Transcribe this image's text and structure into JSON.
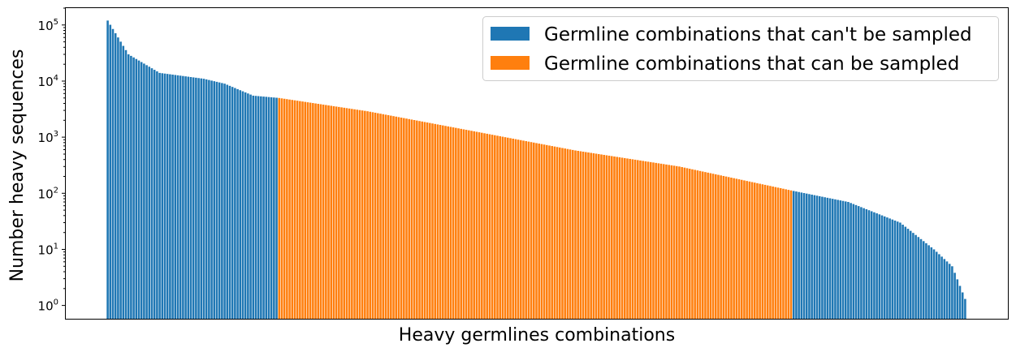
{
  "chart_data": {
    "type": "bar",
    "xlabel": "Heavy germlines combinations",
    "ylabel": "Number heavy sequences",
    "yscale": "log",
    "ylim": [
      0.58,
      200000
    ],
    "yticks": [
      {
        "value": 1,
        "base": "10",
        "exp": "0"
      },
      {
        "value": 10,
        "base": "10",
        "exp": "1"
      },
      {
        "value": 100,
        "base": "10",
        "exp": "2"
      },
      {
        "value": 1000,
        "base": "10",
        "exp": "3"
      },
      {
        "value": 10000,
        "base": "10",
        "exp": "4"
      },
      {
        "value": 100000,
        "base": "10",
        "exp": "5"
      }
    ],
    "grid": false,
    "legend_position": "top-right",
    "colors": {
      "cant_sample": "#1f77b4",
      "can_sample": "#ff7f0e"
    },
    "series": [
      {
        "name": "Germline combinations that can't be sampled",
        "color": "#1f77b4"
      },
      {
        "name": "Germline combinations that can be sampled",
        "color": "#ff7f0e"
      }
    ],
    "bar_count": 331,
    "split": {
      "orange_start": 66,
      "orange_end": 264
    },
    "segments": [
      {
        "start": 0,
        "end": 8,
        "v0": 120000,
        "v1": 30000
      },
      {
        "start": 8,
        "end": 20,
        "v0": 30000,
        "v1": 14000
      },
      {
        "start": 20,
        "end": 37,
        "v0": 14000,
        "v1": 11000
      },
      {
        "start": 37,
        "end": 45,
        "v0": 11000,
        "v1": 9000
      },
      {
        "start": 45,
        "end": 56,
        "v0": 9000,
        "v1": 5500
      },
      {
        "start": 56,
        "end": 66,
        "v0": 5500,
        "v1": 5000
      },
      {
        "start": 66,
        "end": 100,
        "v0": 5000,
        "v1": 2900
      },
      {
        "start": 100,
        "end": 140,
        "v0": 2900,
        "v1": 1300
      },
      {
        "start": 140,
        "end": 180,
        "v0": 1300,
        "v1": 580
      },
      {
        "start": 180,
        "end": 220,
        "v0": 580,
        "v1": 300
      },
      {
        "start": 220,
        "end": 264,
        "v0": 300,
        "v1": 110
      },
      {
        "start": 264,
        "end": 285,
        "v0": 110,
        "v1": 70
      },
      {
        "start": 285,
        "end": 305,
        "v0": 70,
        "v1": 30
      },
      {
        "start": 305,
        "end": 318,
        "v0": 30,
        "v1": 10
      },
      {
        "start": 318,
        "end": 325,
        "v0": 10,
        "v1": 5
      },
      {
        "start": 325,
        "end": 331,
        "v0": 5,
        "v1": 1
      }
    ]
  }
}
